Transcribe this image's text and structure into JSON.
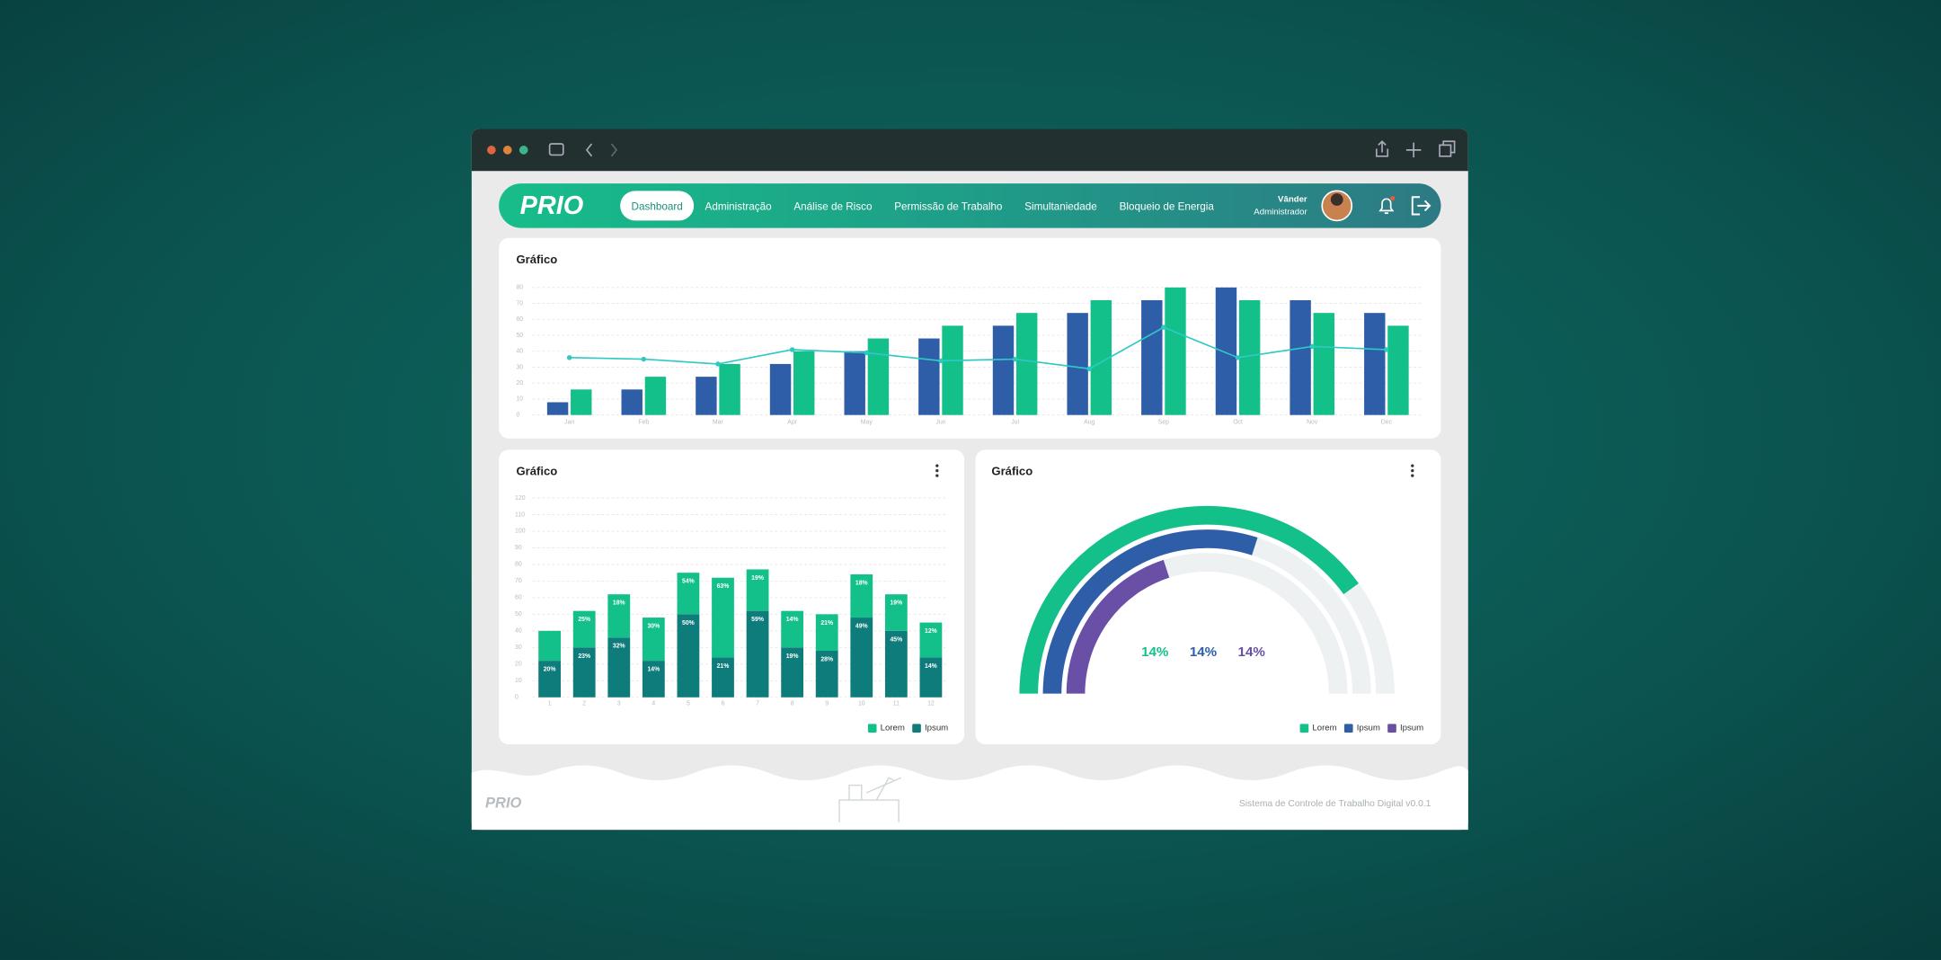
{
  "nav": {
    "logo": "PRIO",
    "items": [
      "Dashboard",
      "Administração",
      "Análise de Risco",
      "Permissão de Trabalho",
      "Simultaniedade",
      "Bloqueio de Energia"
    ],
    "active": 0,
    "user": {
      "name": "Vânder",
      "role": "Administrador"
    }
  },
  "chart_data": [
    {
      "type": "bar",
      "title": "Gráfico",
      "categories": [
        "Jan",
        "Feb",
        "Mar",
        "Apr",
        "May",
        "Jun",
        "Jul",
        "Aug",
        "Sep",
        "Oct",
        "Nov",
        "Dec"
      ],
      "series": [
        {
          "color": "#2f5ea8",
          "values": [
            8,
            16,
            24,
            32,
            40,
            48,
            56,
            64,
            72,
            80,
            72,
            64
          ]
        },
        {
          "color": "#14c08a",
          "values": [
            16,
            24,
            32,
            40,
            48,
            56,
            64,
            72,
            80,
            72,
            64,
            56
          ]
        },
        {
          "type": "line",
          "color": "#2ec9c4",
          "values": [
            36,
            35,
            32,
            41,
            39,
            34,
            35,
            29,
            55,
            36,
            43,
            41
          ]
        }
      ],
      "ylim": [
        0,
        80
      ],
      "yticks": [
        0,
        10,
        20,
        30,
        40,
        50,
        60,
        70,
        80
      ],
      "grid": true
    },
    {
      "type": "stacked_bar",
      "title": "Gráfico",
      "categories": [
        "1",
        "2",
        "3",
        "4",
        "5",
        "6",
        "7",
        "8",
        "9",
        "10",
        "11",
        "12"
      ],
      "series": [
        {
          "name": "Ipsum",
          "color": "#0e7c7b",
          "values": [
            22,
            30,
            36,
            22,
            50,
            24,
            52,
            30,
            28,
            48,
            40,
            24
          ],
          "segment_labels": [
            "20%",
            "23%",
            "32%",
            "14%",
            "50%",
            "21%",
            "59%",
            "19%",
            "28%",
            "49%",
            "45%",
            "14%"
          ]
        },
        {
          "name": "Lorem",
          "color": "#14c08a",
          "values": [
            18,
            22,
            26,
            26,
            25,
            48,
            25,
            22,
            22,
            26,
            22,
            21
          ],
          "segment_labels": [
            null,
            "25%",
            "18%",
            "30%",
            "54%",
            "63%",
            "19%",
            "14%",
            "21%",
            "18%",
            "19%",
            "12%"
          ]
        }
      ],
      "ylim": [
        0,
        120
      ],
      "yticks": [
        0,
        10,
        20,
        30,
        40,
        50,
        60,
        70,
        80,
        90,
        100,
        110,
        120
      ],
      "grid": true,
      "legend": "bottom-right"
    },
    {
      "type": "radial_bar",
      "title": "Gráfico",
      "ylim": [
        0,
        100
      ],
      "legend": "bottom-right",
      "series": [
        {
          "name": "Lorem",
          "color": "#14c08a",
          "values": [
            80
          ],
          "label": "14%"
        },
        {
          "name": "Ipsum",
          "color": "#2f5ea8",
          "values": [
            60
          ],
          "label": "14%"
        },
        {
          "name": "Ipsum",
          "color": "#6a4fa6",
          "values": [
            40
          ],
          "label": "14%"
        }
      ]
    }
  ],
  "footer": {
    "logo": "PRIO",
    "text": "Sistema de Controle de Trabalho Digital v0.0.1"
  }
}
